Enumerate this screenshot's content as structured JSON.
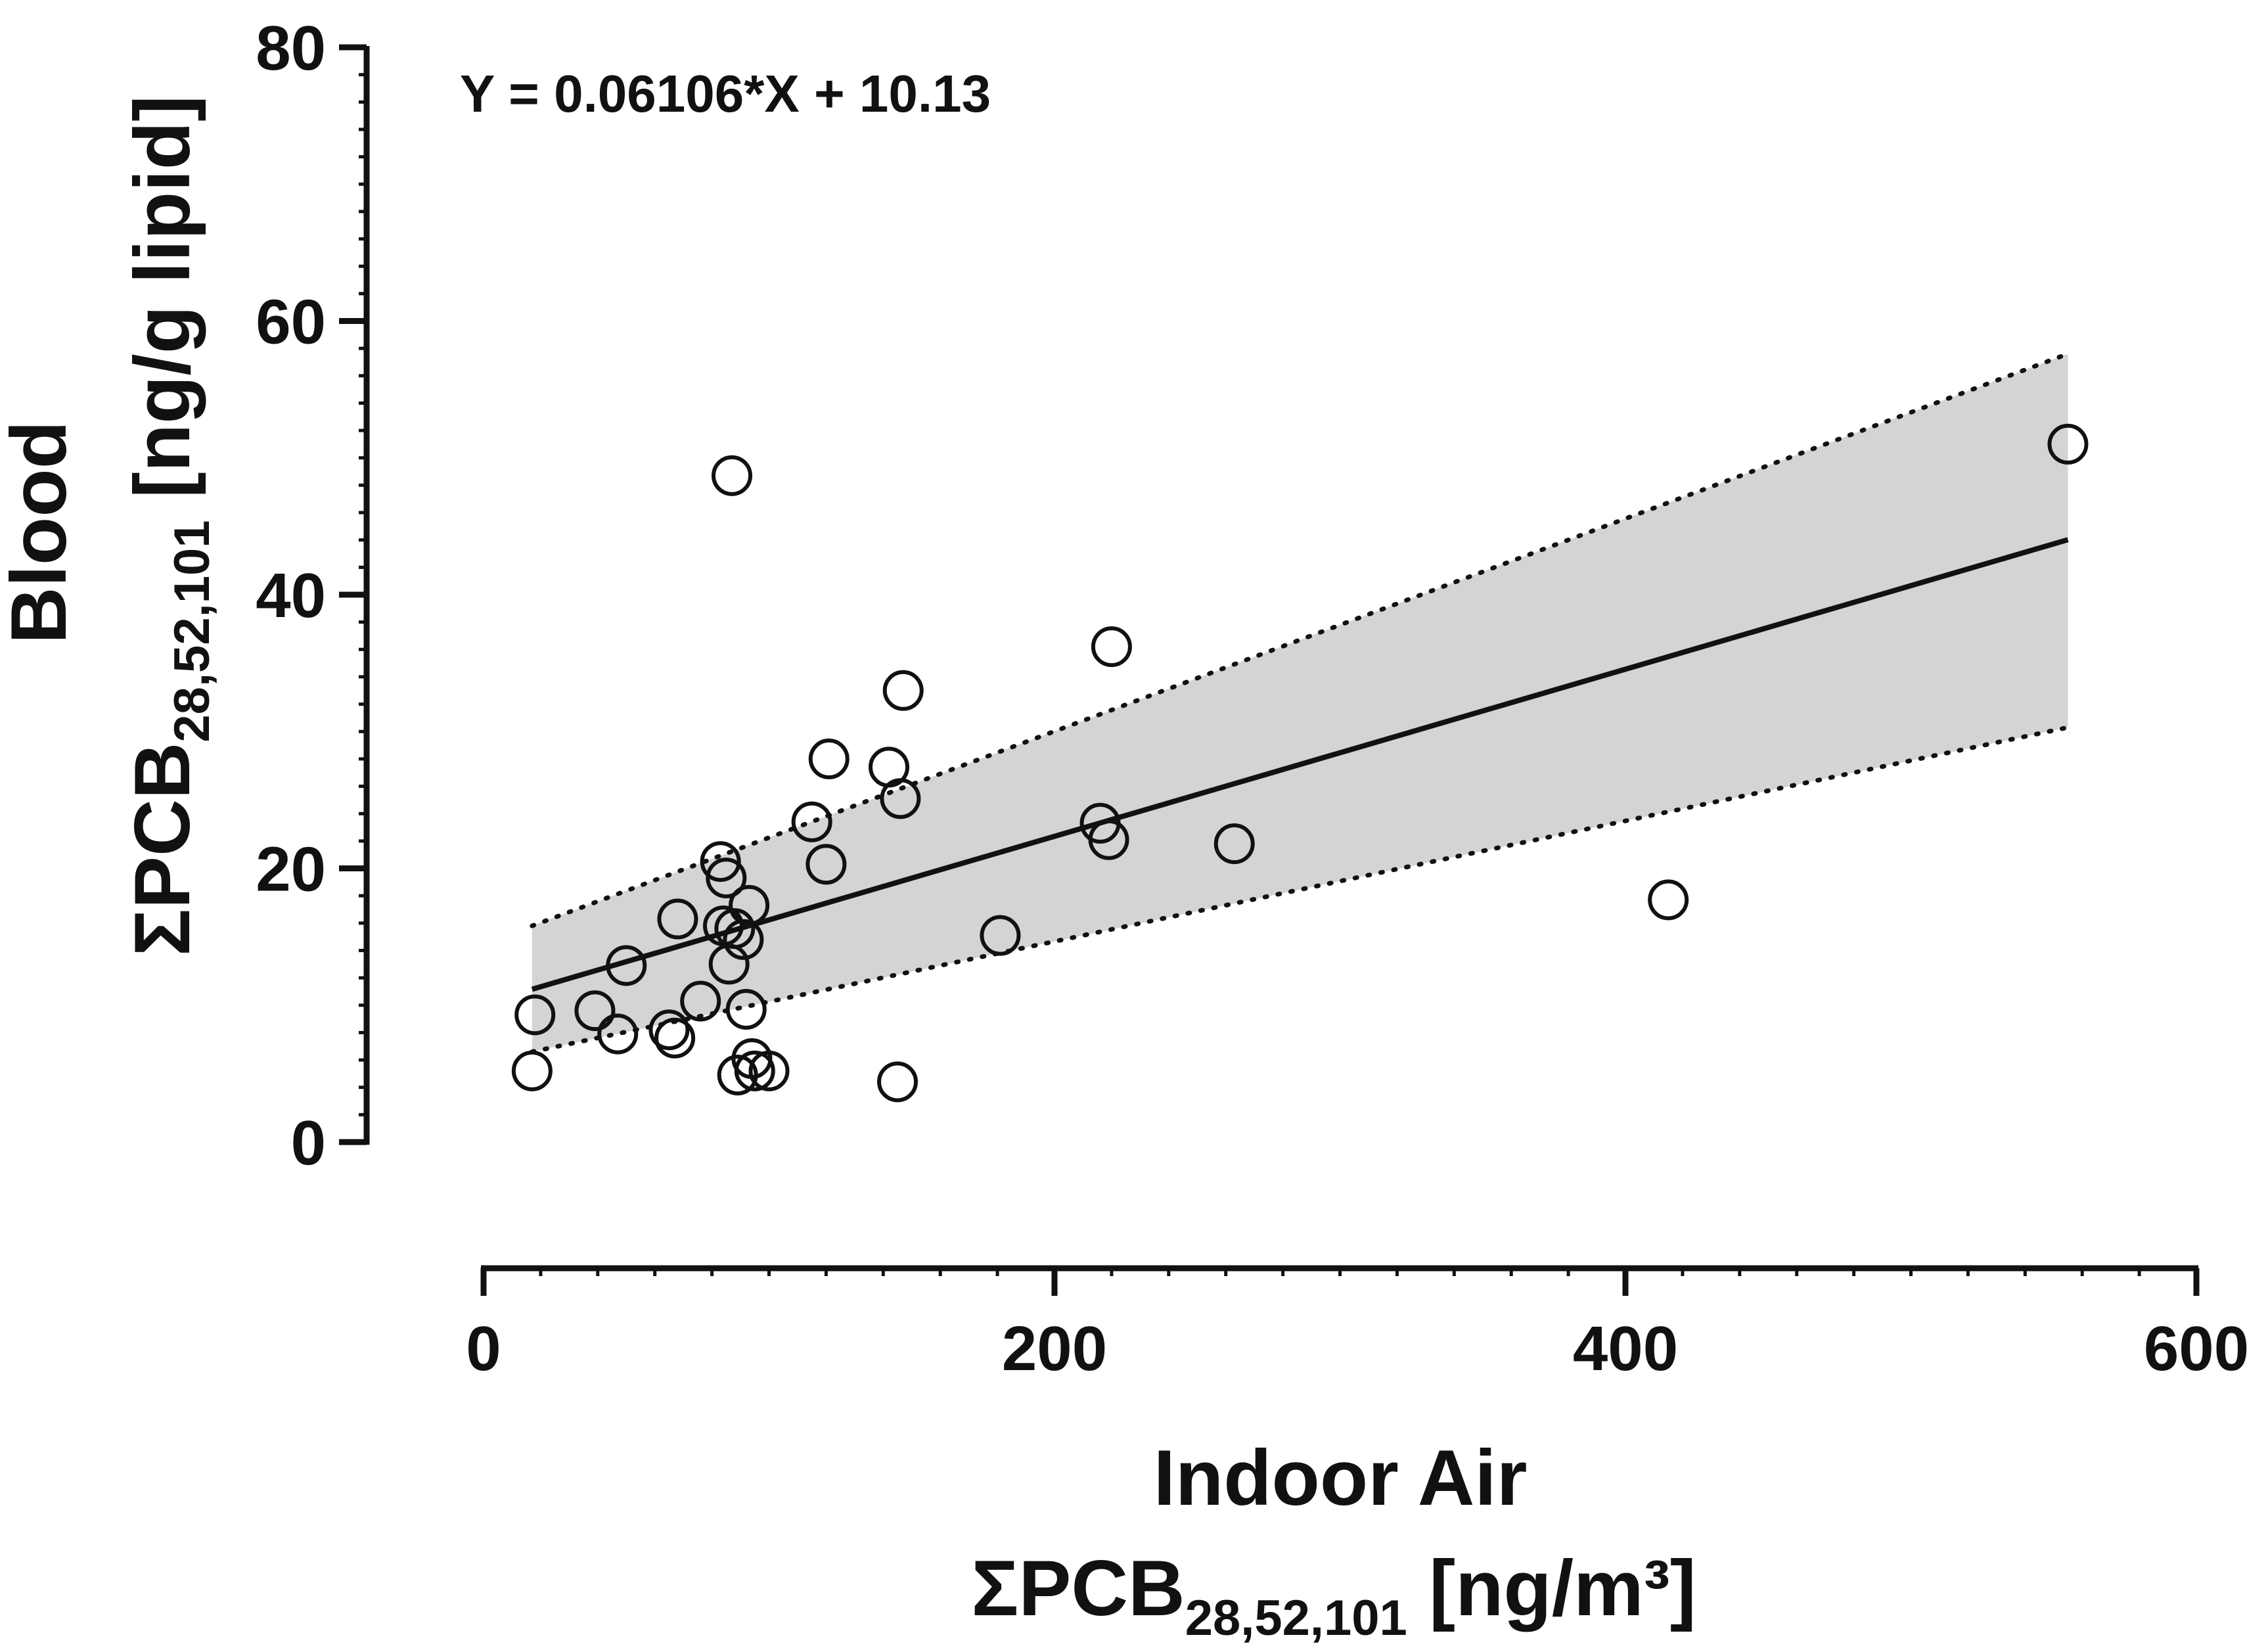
{
  "chart_data": {
    "type": "scatter",
    "title": "",
    "equation": "Y = 0.06106*X + 10.13",
    "ylabel": {
      "line1": "Blood",
      "line2_main": "ΣPCB",
      "line2_sub": "28,52,101",
      "line2_unit": " [ng/g lipid]"
    },
    "xlabel": {
      "line1": "Indoor Air",
      "line2_main": "ΣPCB",
      "line2_sub": "28,52,101",
      "line2_unit": " [ng/m³]"
    },
    "xlim": [
      0,
      600
    ],
    "ylim": [
      0,
      80
    ],
    "xticks": [
      0,
      200,
      400,
      600
    ],
    "xtick_labels": [
      "0",
      "200",
      "400",
      "600"
    ],
    "yticks": [
      0,
      20,
      40,
      60,
      80
    ],
    "ytick_labels": [
      "0",
      "20",
      "40",
      "60",
      "80"
    ],
    "regression": {
      "slope": 0.06106,
      "intercept": 10.13,
      "x_range": [
        17,
        555
      ]
    },
    "confidence_band": {
      "x": [
        17,
        555
      ],
      "lower": [
        6.6,
        30.3
      ],
      "upper": [
        15.8,
        57.6
      ]
    },
    "points": [
      {
        "x": 17,
        "y": 5.2
      },
      {
        "x": 18,
        "y": 9.3
      },
      {
        "x": 39,
        "y": 9.6
      },
      {
        "x": 47,
        "y": 7.9
      },
      {
        "x": 50,
        "y": 12.9
      },
      {
        "x": 65,
        "y": 8.2
      },
      {
        "x": 67,
        "y": 7.6
      },
      {
        "x": 68,
        "y": 16.3
      },
      {
        "x": 76,
        "y": 10.3
      },
      {
        "x": 83,
        "y": 20.5
      },
      {
        "x": 84,
        "y": 15.8
      },
      {
        "x": 85,
        "y": 19.3
      },
      {
        "x": 86,
        "y": 13.0
      },
      {
        "x": 87,
        "y": 48.7
      },
      {
        "x": 88,
        "y": 15.6
      },
      {
        "x": 89,
        "y": 4.9
      },
      {
        "x": 91,
        "y": 14.8
      },
      {
        "x": 92,
        "y": 9.7
      },
      {
        "x": 93,
        "y": 17.3
      },
      {
        "x": 94,
        "y": 6.1
      },
      {
        "x": 95,
        "y": 5.2
      },
      {
        "x": 100,
        "y": 5.2
      },
      {
        "x": 115,
        "y": 23.4
      },
      {
        "x": 120,
        "y": 20.3
      },
      {
        "x": 121,
        "y": 28.0
      },
      {
        "x": 142,
        "y": 27.4
      },
      {
        "x": 145,
        "y": 4.4
      },
      {
        "x": 146,
        "y": 25.1
      },
      {
        "x": 147,
        "y": 33.0
      },
      {
        "x": 181,
        "y": 15.1
      },
      {
        "x": 216,
        "y": 23.3
      },
      {
        "x": 219,
        "y": 22.1
      },
      {
        "x": 220,
        "y": 36.2
      },
      {
        "x": 263,
        "y": 21.8
      },
      {
        "x": 415,
        "y": 17.7
      },
      {
        "x": 555,
        "y": 51.0
      }
    ]
  },
  "colors": {
    "axis": "#111111",
    "band": "#d4d4d4",
    "marker_stroke": "#111111",
    "marker_fill": "#ffffff",
    "line": "#111111"
  }
}
